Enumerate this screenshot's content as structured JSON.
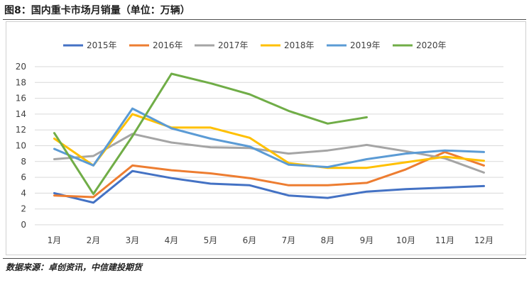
{
  "header": {
    "figure_title": "图8：国内重卡市场月销量（单位：万辆）"
  },
  "footer": {
    "source": "数据来源：卓创资讯，中信建投期货"
  },
  "chart_data": {
    "type": "line",
    "title": "",
    "xlabel": "",
    "ylabel": "",
    "ylim": [
      0,
      20
    ],
    "yticks": [
      "0",
      "2",
      "4",
      "6",
      "8",
      "10",
      "12",
      "14",
      "16",
      "18",
      "20"
    ],
    "grid": "horizontal",
    "legend": "top",
    "categories": [
      "1月",
      "2月",
      "3月",
      "4月",
      "5月",
      "6月",
      "7月",
      "8月",
      "9月",
      "10月",
      "11月",
      "12月"
    ],
    "series": [
      {
        "name": "2015年",
        "color": "#4472c4",
        "values": [
          4.0,
          2.8,
          6.8,
          5.9,
          5.2,
          5.0,
          3.7,
          3.4,
          4.2,
          4.5,
          4.7,
          4.9
        ]
      },
      {
        "name": "2016年",
        "color": "#ed7d31",
        "values": [
          3.7,
          3.5,
          7.5,
          6.9,
          6.5,
          5.9,
          5.0,
          5.0,
          5.3,
          7.0,
          9.2,
          7.5
        ]
      },
      {
        "name": "2017年",
        "color": "#a5a5a5",
        "values": [
          8.3,
          8.7,
          11.5,
          10.4,
          9.8,
          9.7,
          9.0,
          9.4,
          10.1,
          9.3,
          8.4,
          6.6
        ]
      },
      {
        "name": "2018年",
        "color": "#ffc000",
        "values": [
          10.9,
          7.5,
          14.0,
          12.3,
          12.3,
          11.0,
          7.8,
          7.2,
          7.2,
          7.9,
          8.6,
          8.1
        ]
      },
      {
        "name": "2019年",
        "color": "#5b9bd5",
        "values": [
          9.6,
          7.5,
          14.7,
          12.2,
          10.9,
          9.9,
          7.6,
          7.3,
          8.3,
          9.0,
          9.4,
          9.2
        ]
      },
      {
        "name": "2020年",
        "color": "#70ad47",
        "values": [
          11.6,
          3.9,
          11.2,
          19.1,
          17.9,
          16.5,
          14.4,
          12.8,
          13.6,
          null,
          null,
          null
        ]
      }
    ]
  }
}
